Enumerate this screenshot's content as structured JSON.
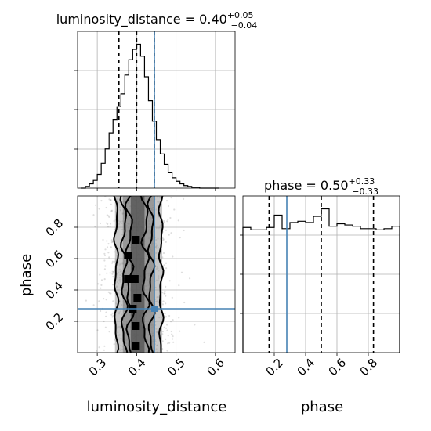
{
  "chart_data": {
    "type": "corner",
    "parameters": [
      "luminosity_distance",
      "phase"
    ],
    "axis_labels": {
      "x_bottom_left": "luminosity_distance",
      "x_bottom_right": "phase",
      "y_left": "phase"
    },
    "truth": {
      "luminosity_distance": 0.445,
      "phase": 0.28
    },
    "truth_color": "#4682b4",
    "grid": true,
    "histograms": [
      {
        "parameter": "luminosity_distance",
        "title_base": "luminosity_distance = 0.40",
        "title_sup": "+0.05",
        "title_sub": "−0.04",
        "xlim": [
          0.25,
          0.65
        ],
        "quantiles": [
          0.355,
          0.4,
          0.445
        ],
        "bin_edges": [
          0.26,
          0.27,
          0.28,
          0.29,
          0.3,
          0.31,
          0.32,
          0.33,
          0.34,
          0.35,
          0.36,
          0.37,
          0.38,
          0.39,
          0.4,
          0.41,
          0.42,
          0.43,
          0.44,
          0.45,
          0.46,
          0.47,
          0.48,
          0.49,
          0.5,
          0.51,
          0.52,
          0.53,
          0.54,
          0.55,
          0.56,
          0.57,
          0.58,
          0.59,
          0.6,
          0.61
        ],
        "counts": [
          0,
          2,
          5,
          9,
          16,
          29,
          46,
          64,
          80,
          95,
          110,
          132,
          150,
          162,
          168,
          154,
          130,
          102,
          78,
          56,
          40,
          28,
          18,
          12,
          8,
          5,
          3,
          2,
          1,
          1,
          0,
          0,
          0,
          0,
          0
        ]
      },
      {
        "parameter": "phase",
        "title_base": "phase = 0.50",
        "title_sup": "+0.33",
        "title_sub": "−0.33",
        "xlim": [
          0.0,
          1.0
        ],
        "quantiles": [
          0.167,
          0.5,
          0.833
        ],
        "bin_edges": [
          0.0,
          0.05,
          0.1,
          0.15,
          0.2,
          0.25,
          0.3,
          0.35,
          0.4,
          0.45,
          0.5,
          0.55,
          0.6,
          0.65,
          0.7,
          0.75,
          0.8,
          0.85,
          0.9,
          0.95,
          1.0
        ],
        "counts": [
          101,
          99,
          99,
          101,
          111,
          100,
          105,
          106,
          105,
          110,
          116,
          102,
          104,
          103,
          102,
          100,
          100,
          99,
          100,
          102
        ]
      }
    ],
    "joint": {
      "x": "luminosity_distance",
      "y": "phase",
      "xlim": [
        0.25,
        0.65
      ],
      "ylim": [
        0.0,
        1.0
      ],
      "x_ticks": [
        0.3,
        0.4,
        0.5,
        0.6
      ],
      "y_ticks": [
        0.2,
        0.4,
        0.6,
        0.8
      ],
      "x_tick_labels": [
        "0.3",
        "0.4",
        "0.5",
        "0.6"
      ],
      "y_tick_labels": [
        "0.2",
        "0.4",
        "0.6",
        "0.8"
      ],
      "contour_x_extent": [
        0.345,
        0.465
      ]
    },
    "phase_x_ticks": [
      0.2,
      0.4,
      0.6,
      0.8
    ],
    "phase_x_tick_labels": [
      "0.2",
      "0.4",
      "0.6",
      "0.8"
    ]
  }
}
